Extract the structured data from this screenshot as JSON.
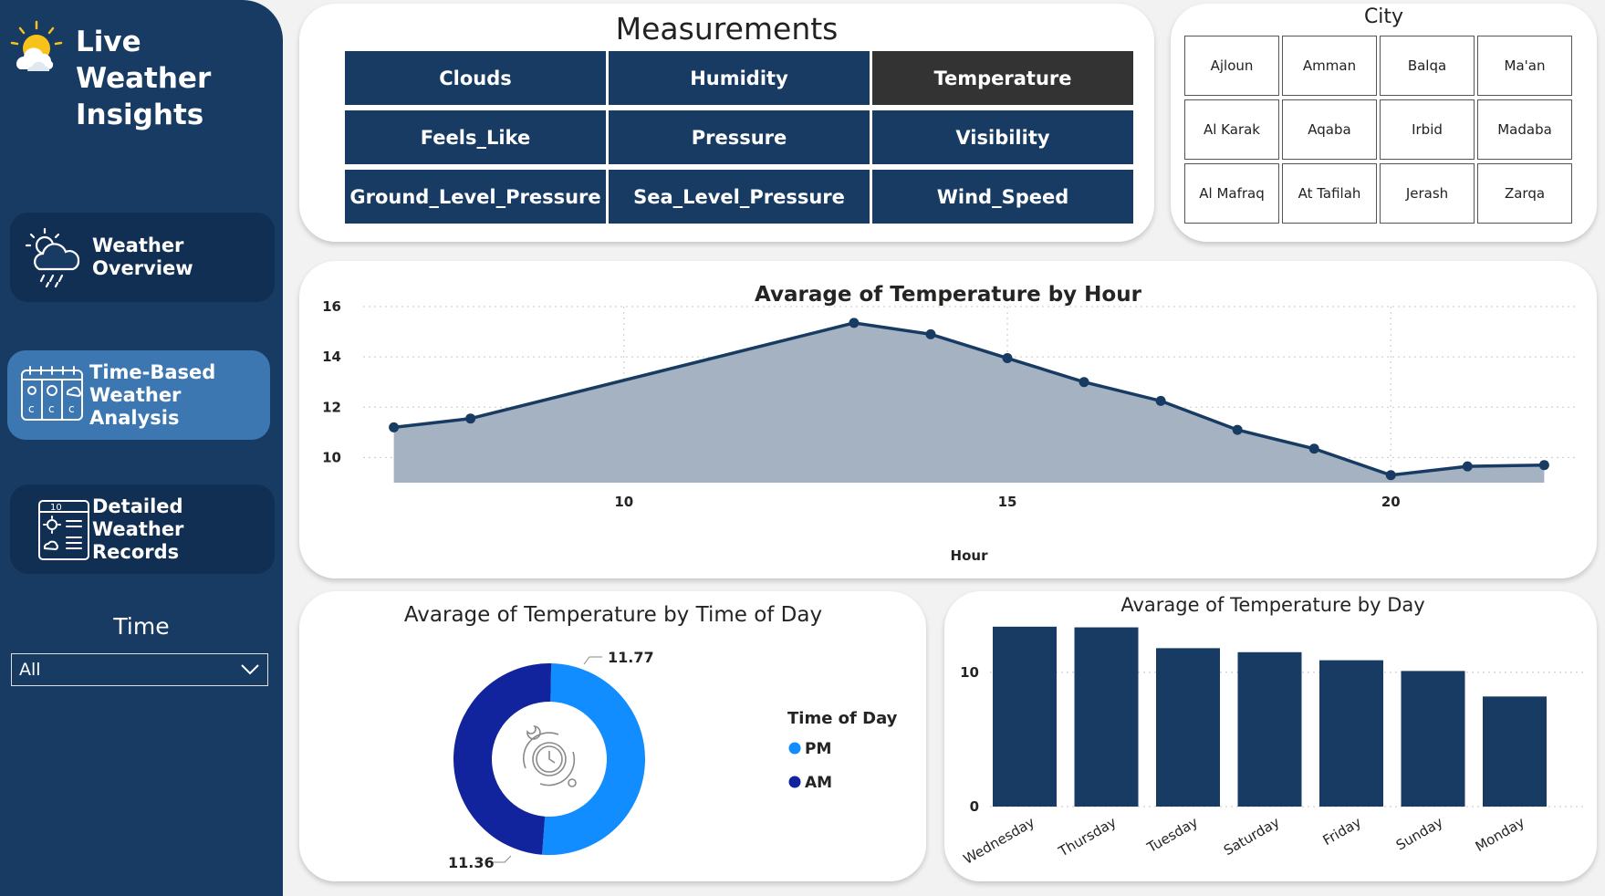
{
  "sidebar": {
    "title": "Live Weather Insights",
    "nav": [
      {
        "label": "Weather Overview",
        "icon": "cloud-rain-icon"
      },
      {
        "label": "Time-Based Weather Analysis",
        "icon": "calendar-weather-icon"
      },
      {
        "label": "Detailed Weather Records",
        "icon": "weather-report-icon"
      }
    ],
    "time_filter": {
      "title": "Time",
      "value": "All"
    }
  },
  "measurements": {
    "title": "Measurements",
    "items": [
      "Clouds",
      "Humidity",
      "Temperature",
      "Feels_Like",
      "Pressure",
      "Visibility",
      "Ground_Level_Pressure",
      "Sea_Level_Pressure",
      "Wind_Speed"
    ],
    "selected": "Temperature"
  },
  "city": {
    "title": "City",
    "items": [
      "Ajloun",
      "Amman",
      "Balqa",
      "Ma'an",
      "Al Karak",
      "Aqaba",
      "Irbid",
      "Madaba",
      "Al Mafraq",
      "At Tafilah",
      "Jerash",
      "Zarqa"
    ]
  },
  "colors": {
    "sidebar": "#173b63",
    "accent": "#3c77b2",
    "navy": "#173b63",
    "pm": "#118dff",
    "am": "#12239e",
    "area_fill": "#a4b2c2"
  },
  "chart_data": [
    {
      "type": "area",
      "title": "Avarage of Temperature by Hour",
      "xlabel": "Hour",
      "ylabel": "",
      "x": [
        7,
        8,
        13,
        14,
        15,
        16,
        17,
        18,
        19,
        20,
        21,
        22
      ],
      "values": [
        11.2,
        11.55,
        15.35,
        14.9,
        13.95,
        13.0,
        12.25,
        11.1,
        10.35,
        9.3,
        9.65,
        9.7
      ],
      "xticks": [
        10,
        15,
        20
      ],
      "yticks": [
        10,
        12,
        14,
        16
      ],
      "xlim": [
        6.6,
        22.4
      ],
      "ylim": [
        9,
        16
      ],
      "grid": true
    },
    {
      "type": "pie",
      "title": "Avarage of Temperature by Time of Day",
      "legend_title": "Time of Day",
      "categories": [
        "PM",
        "AM"
      ],
      "values": [
        11.77,
        11.36
      ],
      "legend_position": "right"
    },
    {
      "type": "bar",
      "title": "Avarage of Temperature by Day",
      "categories": [
        "Wednesday",
        "Thursday",
        "Tuesday",
        "Saturday",
        "Friday",
        "Sunday",
        "Monday"
      ],
      "values": [
        13.4,
        13.35,
        11.8,
        11.5,
        10.9,
        10.1,
        8.2
      ],
      "yticks": [
        0,
        10
      ],
      "ylim": [
        0,
        14
      ],
      "grid": true
    }
  ]
}
